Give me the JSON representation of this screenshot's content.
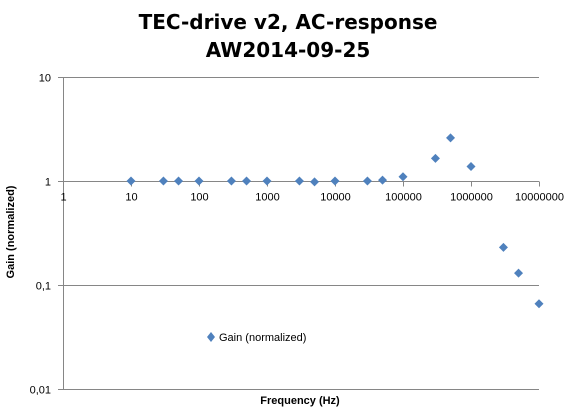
{
  "chart_data": {
    "type": "scatter",
    "title": [
      "TEC-drive v2, AC-response",
      "AW2014-09-25"
    ],
    "xlabel": "Frequency (Hz)",
    "ylabel": "Gain (normalized)",
    "x_scale": "log",
    "y_scale": "log",
    "xlim": [
      1,
      10000000
    ],
    "ylim": [
      0.01,
      10
    ],
    "x_tick_labels": [
      "1",
      "10",
      "100",
      "1000",
      "10000",
      "100000",
      "1000000",
      "10000000"
    ],
    "y_tick_labels": [
      "10",
      "1",
      "0,1",
      "0,01"
    ],
    "grid": "horizontal major",
    "legend_position": "inside-lower-left",
    "series": [
      {
        "name": "Gain (normalized)",
        "color": "#4f81bd",
        "marker": "diamond",
        "points": [
          [
            10,
            1.0
          ],
          [
            30,
            1.0
          ],
          [
            50,
            1.0
          ],
          [
            100,
            1.0
          ],
          [
            300,
            1.0
          ],
          [
            500,
            1.0
          ],
          [
            1000,
            1.0
          ],
          [
            3000,
            1.0
          ],
          [
            5000,
            0.98
          ],
          [
            10000,
            1.0
          ],
          [
            30000,
            1.0
          ],
          [
            50000,
            1.02
          ],
          [
            100000,
            1.1
          ],
          [
            300000,
            1.65
          ],
          [
            500000,
            2.6
          ],
          [
            1000000,
            1.38
          ],
          [
            3000000,
            0.23
          ],
          [
            5000000,
            0.13
          ],
          [
            10000000,
            0.066
          ]
        ]
      }
    ]
  }
}
